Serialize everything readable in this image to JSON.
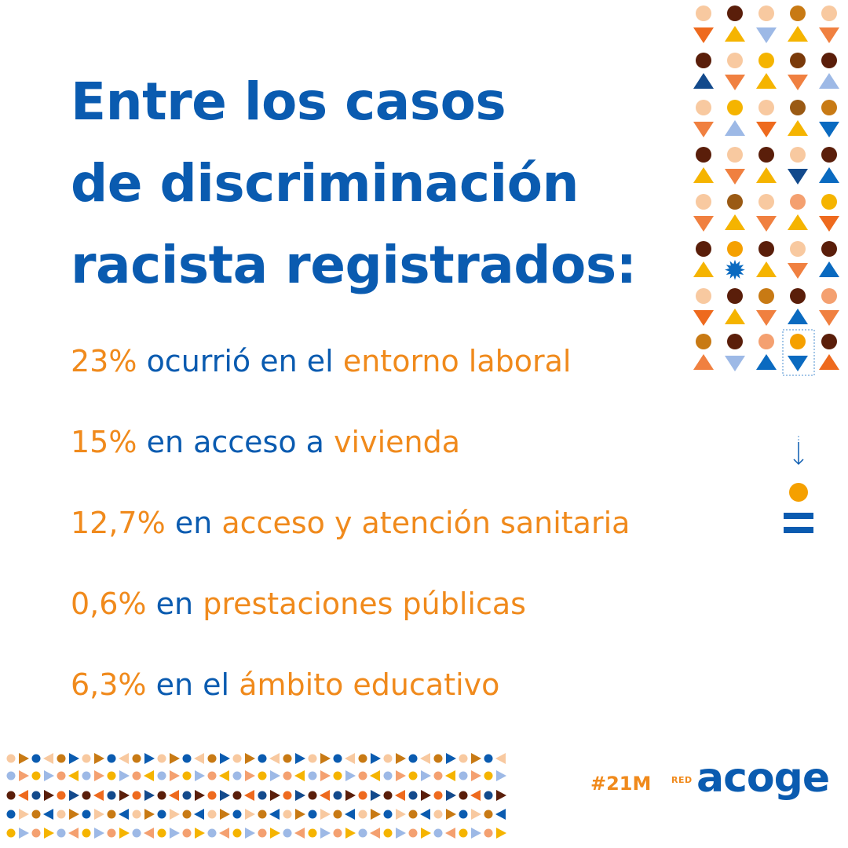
{
  "headline": {
    "lines": [
      "Entre los casos",
      "de discriminación",
      "racista registrados:"
    ]
  },
  "stats": [
    {
      "value": "23%",
      "connector": "ocurrió en el",
      "topic": "entorno laboral"
    },
    {
      "value": "15%",
      "connector": "en acceso a",
      "topic": "vivienda"
    },
    {
      "value": "12,7%",
      "connector": "en",
      "topic": "acceso y atención sanitaria"
    },
    {
      "value": "0,6%",
      "connector": "en",
      "topic": "prestaciones públicas"
    },
    {
      "value": "6,3%",
      "connector": "en el",
      "topic": "ámbito educativo"
    }
  ],
  "footer": {
    "hashtag": "#21M",
    "logo_prefix": "RED",
    "logo_word": "acoge"
  },
  "colors": {
    "blue": "#0a5bb0",
    "orange": "#f08a1c",
    "accent_yellow": "#f5b400",
    "dark_brown": "#5a1e0a",
    "peach": "#f8c9a0"
  },
  "icons": {
    "pattern": "geometric-people-pattern",
    "highlight": "highlighted-person-icon",
    "legend": "person-equals-icon"
  }
}
